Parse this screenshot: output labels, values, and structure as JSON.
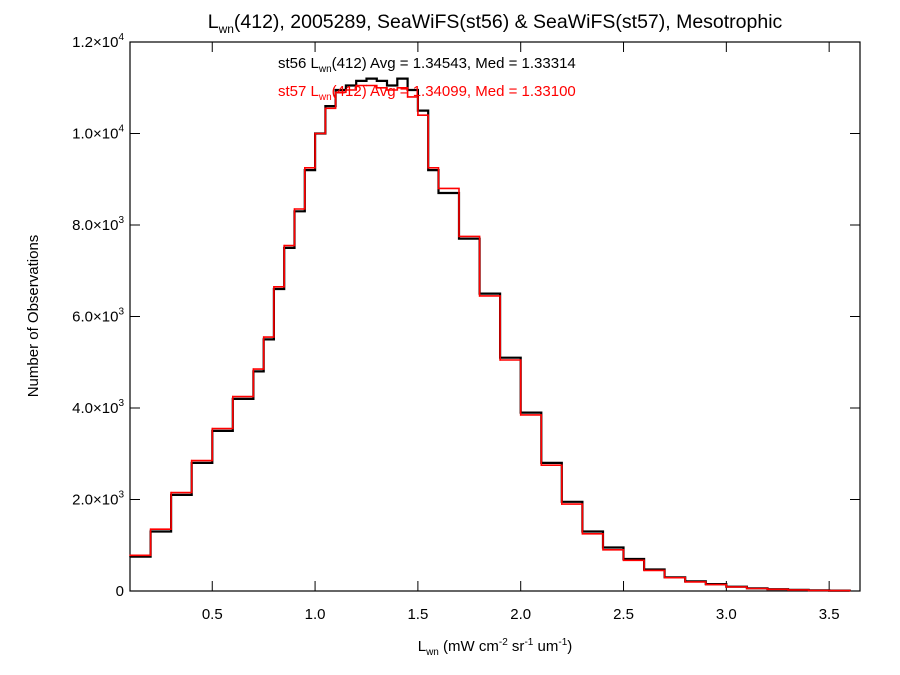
{
  "chart_data": {
    "type": "line",
    "title_main": "L",
    "title_sub": "wn",
    "title_rest": "(412), 2005289, SeaWiFS(st56) & SeaWiFS(st57), Mesotrophic",
    "xlabel_main": "L",
    "xlabel_sub": "wn",
    "xlabel_p1": " (mW cm",
    "xlabel_sup1": "-2",
    "xlabel_p2": " sr",
    "xlabel_sup2": "-1",
    "xlabel_p3": " um",
    "xlabel_sup3": "-1",
    "xlabel_p4": ")",
    "ylabel": "Number of Observations",
    "xlim": [
      0.1,
      3.65
    ],
    "ylim": [
      0,
      12000
    ],
    "x_ticks": [
      {
        "value": 0.5,
        "label": "0.5"
      },
      {
        "value": 1.0,
        "label": "1.0"
      },
      {
        "value": 1.5,
        "label": "1.5"
      },
      {
        "value": 2.0,
        "label": "2.0"
      },
      {
        "value": 2.5,
        "label": "2.5"
      },
      {
        "value": 3.0,
        "label": "3.0"
      },
      {
        "value": 3.5,
        "label": "3.5"
      }
    ],
    "y_ticks": [
      {
        "value": 0,
        "mant": "0",
        "exp": ""
      },
      {
        "value": 2000,
        "mant": "2.0×10",
        "exp": "3"
      },
      {
        "value": 4000,
        "mant": "4.0×10",
        "exp": "3"
      },
      {
        "value": 6000,
        "mant": "6.0×10",
        "exp": "3"
      },
      {
        "value": 8000,
        "mant": "8.0×10",
        "exp": "3"
      },
      {
        "value": 10000,
        "mant": "1.0×10",
        "exp": "4"
      },
      {
        "value": 12000,
        "mant": "1.2×10",
        "exp": "4"
      }
    ],
    "annotations": [
      {
        "series": "st56",
        "color": "#000000",
        "pre": "st56 L",
        "sub": "wn",
        "post": "(412) Avg = 1.34543, Med = 1.33314"
      },
      {
        "series": "st57",
        "color": "#ff0000",
        "pre": "st57 L",
        "sub": "wn",
        "post": "(412) Avg = 1.34099, Med = 1.33100"
      }
    ],
    "series": [
      {
        "color": "#000000",
        "x": [
          0.1,
          0.2,
          0.3,
          0.4,
          0.5,
          0.6,
          0.7,
          0.75,
          0.8,
          0.85,
          0.9,
          0.95,
          1.0,
          1.05,
          1.1,
          1.15,
          1.2,
          1.25,
          1.3,
          1.35,
          1.4,
          1.45,
          1.5,
          1.55,
          1.6,
          1.7,
          1.8,
          1.9,
          2.0,
          2.1,
          2.2,
          2.3,
          2.4,
          2.5,
          2.6,
          2.7,
          2.8,
          2.9,
          3.0,
          3.1,
          3.2,
          3.3,
          3.4,
          3.5,
          3.6
        ],
        "y": [
          750,
          1300,
          2100,
          2800,
          3500,
          4200,
          4800,
          5500,
          6600,
          7500,
          8300,
          9200,
          10000,
          10600,
          10950,
          11050,
          11150,
          11200,
          11150,
          11050,
          11200,
          10950,
          10500,
          9200,
          8700,
          7700,
          6500,
          5100,
          3900,
          2800,
          1950,
          1300,
          950,
          700,
          470,
          300,
          210,
          150,
          95,
          60,
          40,
          25,
          15,
          8,
          5
        ]
      },
      {
        "color": "#ff0000",
        "x": [
          0.1,
          0.2,
          0.3,
          0.4,
          0.5,
          0.6,
          0.7,
          0.75,
          0.8,
          0.85,
          0.9,
          0.95,
          1.0,
          1.05,
          1.1,
          1.15,
          1.2,
          1.25,
          1.3,
          1.35,
          1.4,
          1.45,
          1.5,
          1.55,
          1.6,
          1.7,
          1.8,
          1.9,
          2.0,
          2.1,
          2.2,
          2.3,
          2.4,
          2.5,
          2.6,
          2.7,
          2.8,
          2.9,
          3.0,
          3.1,
          3.2,
          3.3,
          3.4,
          3.5,
          3.6
        ],
        "y": [
          780,
          1350,
          2150,
          2850,
          3550,
          4250,
          4850,
          5550,
          6650,
          7550,
          8350,
          9250,
          10000,
          10550,
          10900,
          10950,
          11050,
          11050,
          11000,
          10950,
          11000,
          10800,
          10400,
          9250,
          8800,
          7750,
          6450,
          5050,
          3850,
          2750,
          1900,
          1250,
          900,
          670,
          450,
          290,
          200,
          140,
          90,
          55,
          38,
          24,
          14,
          8,
          5
        ]
      }
    ]
  }
}
